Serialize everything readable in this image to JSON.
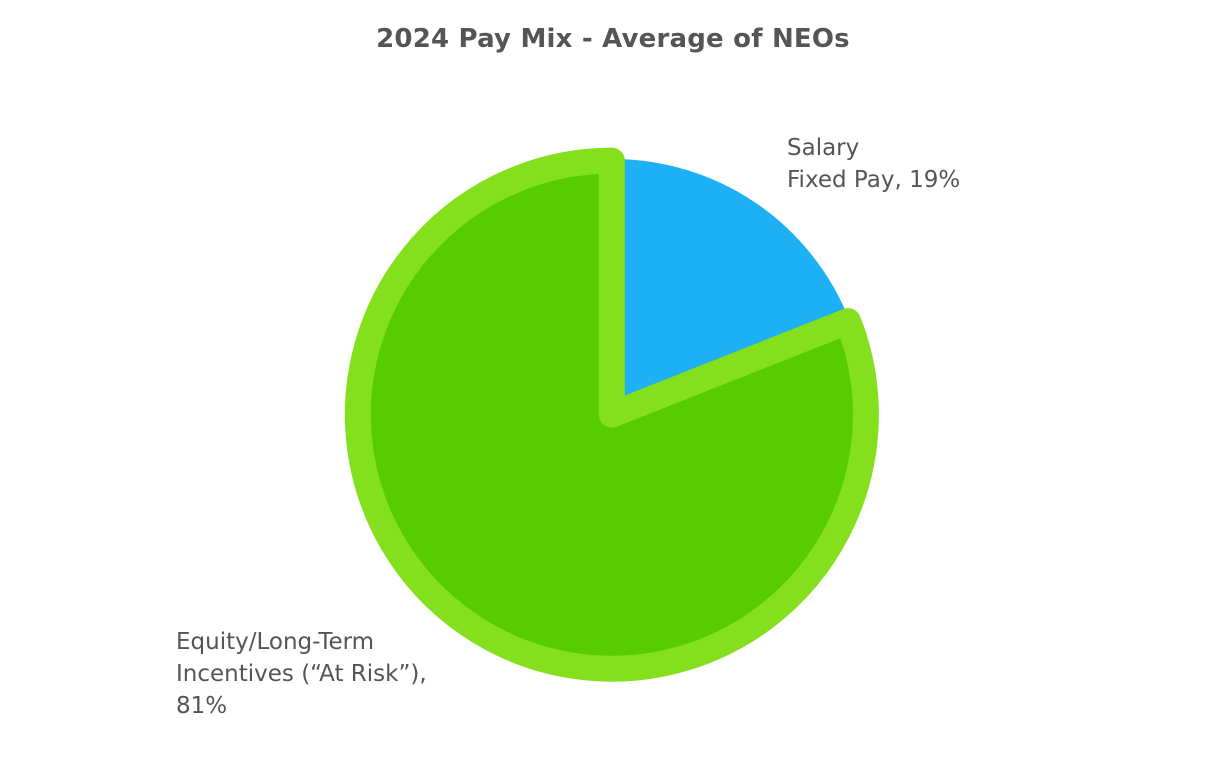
{
  "chart_data": {
    "type": "pie",
    "title": "2024 Pay Mix - Average of NEOs",
    "slices": [
      {
        "name": "Salary",
        "label_lines": [
          "Salary",
          "Fixed Pay, 19%"
        ],
        "value": 19,
        "color": "#1EB0F5",
        "exploded": false
      },
      {
        "name": "Equity/Long-Term Incentives (“At Risk”)",
        "label_lines": [
          "Equity/Long-Term",
          "Incentives (“At Risk”),",
          "81%"
        ],
        "value": 81,
        "color": "#57CC00",
        "border_color": "#84E01C",
        "exploded": true
      }
    ],
    "start_angle": "12 o'clock",
    "direction": "clockwise",
    "legend": "none",
    "data_labels": "outside"
  }
}
